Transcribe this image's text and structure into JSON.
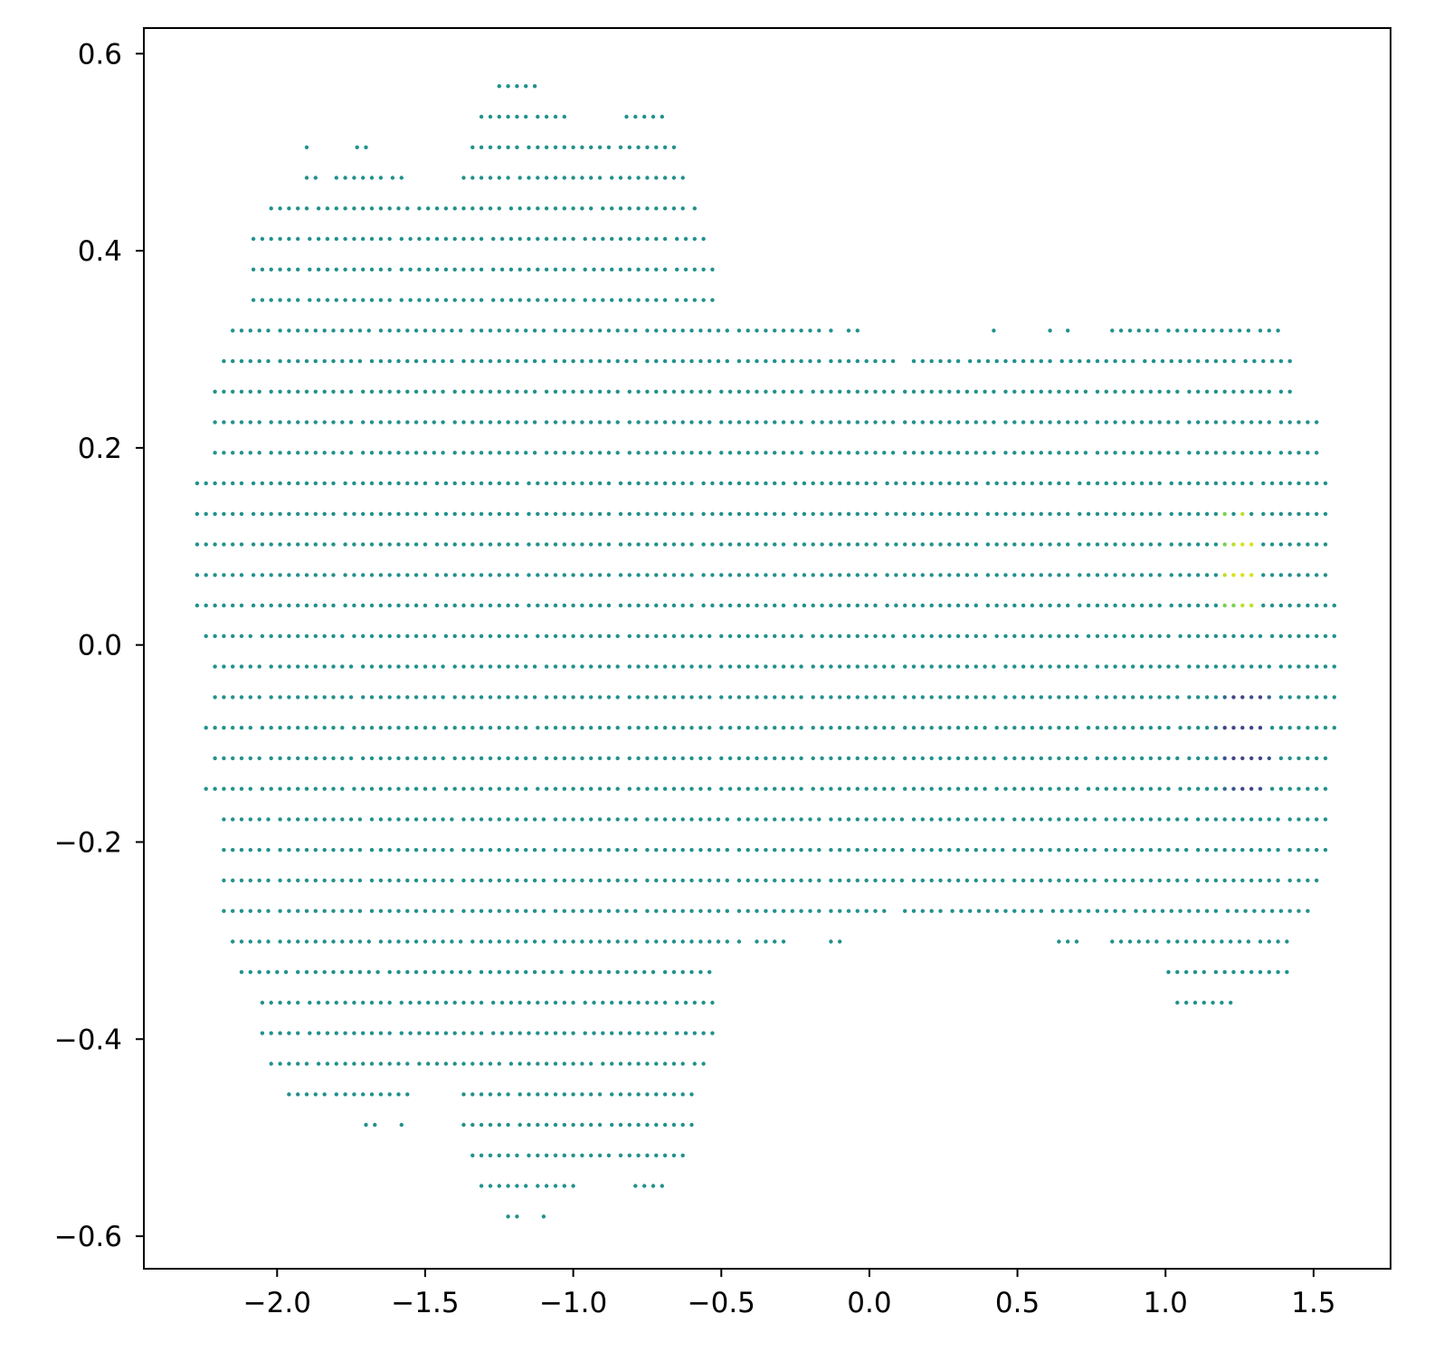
{
  "chart_data": {
    "type": "scatter",
    "title": "",
    "xlabel": "",
    "ylabel": "",
    "xlim": [
      -2.45,
      1.76
    ],
    "ylim": [
      -0.633,
      0.626
    ],
    "grid": false,
    "legend": "none",
    "xticks": [
      -2.0,
      -1.5,
      -1.0,
      -0.5,
      0.0,
      0.5,
      1.0,
      1.5
    ],
    "xtick_labels": [
      "−2.0",
      "−1.5",
      "−1.0",
      "−0.5",
      "0.0",
      "0.5",
      "1.0",
      "1.5"
    ],
    "yticks": [
      0.6,
      0.4,
      0.2,
      0.0,
      -0.2,
      -0.4,
      -0.6
    ],
    "ytick_labels": [
      "0.6",
      "0.4",
      "0.2",
      "0.0",
      "−0.2",
      "−0.4",
      "−0.6"
    ],
    "colors": {
      "base": "#21918c",
      "bright": "#bddf26",
      "yellow": "#d9e21a",
      "light": "#7ad151",
      "dark": "#414487",
      "darkest": "#3b528b",
      "greenish": "#2fb47c",
      "bluish": "#31688e"
    },
    "grid_spacing": {
      "dx": 0.031,
      "dy": 0.031
    },
    "rows": [
      {
        "y": 0.567,
        "segments": [
          [
            -1.25,
            -1.14
          ]
        ]
      },
      {
        "y": 0.536,
        "segments": [
          [
            -1.31,
            -1.03
          ],
          [
            -0.82,
            -0.69
          ]
        ]
      },
      {
        "y": 0.505,
        "segments": [
          [
            -1.9,
            -1.9
          ],
          [
            -1.73,
            -1.7
          ],
          [
            -1.34,
            -0.66
          ]
        ]
      },
      {
        "y": 0.474,
        "segments": [
          [
            -1.9,
            -1.87
          ],
          [
            -1.8,
            -1.58
          ],
          [
            -1.37,
            -0.62
          ]
        ]
      },
      {
        "y": 0.443,
        "segments": [
          [
            -2.02,
            -0.59
          ]
        ]
      },
      {
        "y": 0.412,
        "segments": [
          [
            -2.08,
            -0.56
          ]
        ]
      },
      {
        "y": 0.381,
        "segments": [
          [
            -2.08,
            -0.53
          ]
        ]
      },
      {
        "y": 0.35,
        "segments": [
          [
            -2.08,
            -0.53
          ]
        ]
      },
      {
        "y": 0.319,
        "segments": [
          [
            -2.15,
            -0.13
          ],
          [
            -0.07,
            -0.04
          ],
          [
            0.42,
            0.42
          ],
          [
            0.61,
            0.61
          ],
          [
            0.67,
            0.67
          ],
          [
            0.82,
            1.38
          ]
        ]
      },
      {
        "y": 0.288,
        "segments": [
          [
            -2.18,
            0.09
          ],
          [
            0.15,
            1.41
          ]
        ]
      },
      {
        "y": 0.257,
        "segments": [
          [
            -2.21,
            1.41
          ]
        ]
      },
      {
        "y": 0.226,
        "segments": [
          [
            -2.21,
            1.5
          ]
        ]
      },
      {
        "y": 0.195,
        "segments": [
          [
            -2.21,
            1.5
          ]
        ]
      },
      {
        "y": 0.164,
        "segments": [
          [
            -2.27,
            1.53
          ]
        ]
      },
      {
        "y": 0.133,
        "segments": [
          [
            -2.27,
            1.53
          ]
        ]
      },
      {
        "y": 0.102,
        "segments": [
          [
            -2.27,
            1.53
          ]
        ]
      },
      {
        "y": 0.071,
        "segments": [
          [
            -2.27,
            1.53
          ]
        ]
      },
      {
        "y": 0.04,
        "segments": [
          [
            -2.27,
            1.57
          ]
        ]
      },
      {
        "y": 0.009,
        "segments": [
          [
            -2.24,
            1.57
          ]
        ]
      },
      {
        "y": -0.022,
        "segments": [
          [
            -2.21,
            1.57
          ]
        ]
      },
      {
        "y": -0.053,
        "segments": [
          [
            -2.21,
            1.57
          ]
        ]
      },
      {
        "y": -0.084,
        "segments": [
          [
            -2.24,
            1.57
          ]
        ]
      },
      {
        "y": -0.115,
        "segments": [
          [
            -2.21,
            1.53
          ]
        ]
      },
      {
        "y": -0.146,
        "segments": [
          [
            -2.24,
            1.53
          ]
        ]
      },
      {
        "y": -0.177,
        "segments": [
          [
            -2.18,
            1.53
          ]
        ]
      },
      {
        "y": -0.208,
        "segments": [
          [
            -2.18,
            1.53
          ]
        ]
      },
      {
        "y": -0.239,
        "segments": [
          [
            -2.18,
            1.5
          ]
        ]
      },
      {
        "y": -0.27,
        "segments": [
          [
            -2.18,
            0.06
          ],
          [
            0.12,
            1.47
          ]
        ]
      },
      {
        "y": -0.301,
        "segments": [
          [
            -2.15,
            -0.44
          ],
          [
            -0.38,
            -0.29
          ],
          [
            -0.13,
            -0.1
          ],
          [
            0.64,
            0.7
          ],
          [
            0.82,
            1.41
          ]
        ]
      },
      {
        "y": -0.332,
        "segments": [
          [
            -2.12,
            -0.53
          ],
          [
            1.01,
            1.41
          ]
        ]
      },
      {
        "y": -0.363,
        "segments": [
          [
            -2.05,
            -0.53
          ],
          [
            1.04,
            1.07
          ],
          [
            1.1,
            1.22
          ]
        ]
      },
      {
        "y": -0.394,
        "segments": [
          [
            -2.05,
            -0.53
          ]
        ]
      },
      {
        "y": -0.425,
        "segments": [
          [
            -2.02,
            -0.56
          ]
        ]
      },
      {
        "y": -0.456,
        "segments": [
          [
            -1.96,
            -1.55
          ],
          [
            -1.37,
            -0.59
          ]
        ]
      },
      {
        "y": -0.487,
        "segments": [
          [
            -1.7,
            -1.67
          ],
          [
            -1.58,
            -1.58
          ],
          [
            -1.37,
            -0.59
          ]
        ]
      },
      {
        "y": -0.518,
        "segments": [
          [
            -1.34,
            -0.62
          ]
        ]
      },
      {
        "y": -0.549,
        "segments": [
          [
            -1.31,
            -1.0
          ],
          [
            -0.79,
            -0.69
          ]
        ]
      },
      {
        "y": -0.58,
        "segments": [
          [
            -1.22,
            -1.19
          ],
          [
            -1.1,
            -1.1
          ]
        ]
      }
    ],
    "highlights": [
      {
        "y": 0.133,
        "x": [
          1.2,
          1.26,
          1.32,
          1.35
        ],
        "colors": [
          "#7ad151",
          "#bddf26",
          "#bddf26",
          "#7ad151"
        ]
      },
      {
        "y": 0.102,
        "x": [
          1.2,
          1.23,
          1.26,
          1.29,
          1.32,
          1.35
        ],
        "colors": [
          "#7ad151",
          "#bddf26",
          "#d9e21a",
          "#d9e21a",
          "#bddf26",
          "#7ad151"
        ]
      },
      {
        "y": 0.071,
        "x": [
          1.2,
          1.23,
          1.26,
          1.29,
          1.32,
          1.35
        ],
        "colors": [
          "#bddf26",
          "#d9e21a",
          "#d9e21a",
          "#d9e21a",
          "#d9e21a",
          "#bddf26"
        ]
      },
      {
        "y": 0.04,
        "x": [
          1.2,
          1.23,
          1.26,
          1.29,
          1.32
        ],
        "colors": [
          "#7ad151",
          "#7ad151",
          "#bddf26",
          "#bddf26",
          "#d9e21a"
        ]
      },
      {
        "y": -0.053,
        "x": [
          1.2,
          1.23,
          1.26,
          1.29,
          1.32,
          1.35
        ],
        "colors": [
          "#31688e",
          "#414487",
          "#414487",
          "#3b528b",
          "#414487",
          "#31688e"
        ]
      },
      {
        "y": -0.084,
        "x": [
          1.17,
          1.2,
          1.23,
          1.26,
          1.29,
          1.32,
          1.35
        ],
        "colors": [
          "#31688e",
          "#414487",
          "#414487",
          "#414487",
          "#414487",
          "#414487",
          "#3b528b"
        ]
      },
      {
        "y": -0.115,
        "x": [
          1.2,
          1.23,
          1.26,
          1.29,
          1.32,
          1.35
        ],
        "colors": [
          "#3b528b",
          "#414487",
          "#414487",
          "#414487",
          "#414487",
          "#3b528b"
        ]
      },
      {
        "y": -0.146,
        "x": [
          1.2,
          1.23,
          1.26,
          1.29,
          1.32,
          1.35
        ],
        "colors": [
          "#31688e",
          "#3b528b",
          "#414487",
          "#414487",
          "#3b528b",
          "#31688e"
        ]
      },
      {
        "y": -0.084,
        "x": [
          -1.82,
          -1.79,
          -1.76
        ],
        "colors": [
          "#2fb47c",
          "#2fb47c",
          "#2fb47c"
        ]
      },
      {
        "y": -0.115,
        "x": [
          -1.82,
          -1.79
        ],
        "colors": [
          "#2fb47c",
          "#2fb47c"
        ]
      },
      {
        "y": 0.164,
        "x": [
          -1.85,
          -1.82,
          -1.79
        ],
        "colors": [
          "#31688e",
          "#31688e",
          "#31688e"
        ]
      },
      {
        "y": 0.133,
        "x": [
          -1.85,
          -1.82,
          -1.79
        ],
        "colors": [
          "#31688e",
          "#31688e",
          "#31688e"
        ]
      }
    ]
  }
}
